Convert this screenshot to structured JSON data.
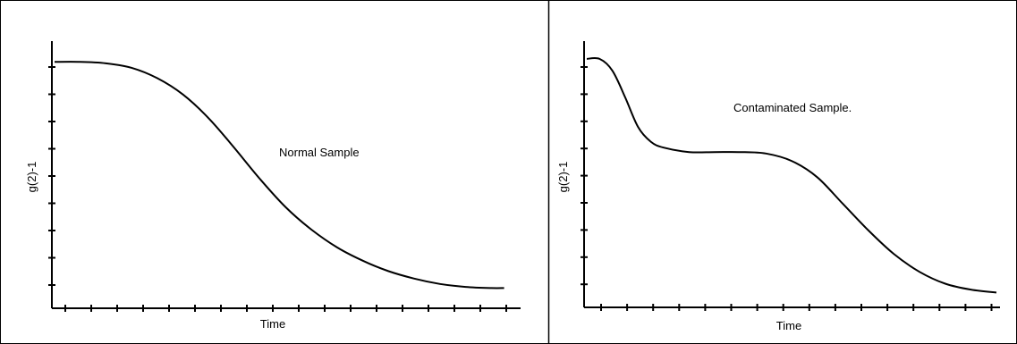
{
  "chart_data": [
    {
      "type": "line",
      "title": "",
      "annotation": "Normal Sample",
      "xlabel": "Time",
      "ylabel": "g(2)-1",
      "xlim": [
        0,
        18
      ],
      "ylim": [
        0,
        9
      ],
      "x_tick_count": 18,
      "y_tick_count": 9,
      "grid": false,
      "series": [
        {
          "x": [
            0,
            1,
            2,
            3,
            4,
            5,
            6,
            7,
            8,
            9,
            10,
            11,
            12,
            13,
            14,
            15,
            16,
            17,
            17.5
          ],
          "y": [
            8.3,
            8.3,
            8.25,
            8.1,
            7.75,
            7.2,
            6.4,
            5.4,
            4.35,
            3.4,
            2.65,
            2.05,
            1.6,
            1.25,
            1.0,
            0.82,
            0.72,
            0.68,
            0.68
          ]
        }
      ]
    },
    {
      "type": "line",
      "title": "",
      "annotation": "Contaminated Sample.",
      "xlabel": "Time",
      "ylabel": "g(2)-1",
      "xlim": [
        0,
        16
      ],
      "ylim": [
        0,
        9
      ],
      "x_tick_count": 16,
      "y_tick_count": 9,
      "grid": false,
      "series": [
        {
          "x": [
            0,
            0.5,
            1,
            1.5,
            2,
            2.5,
            3,
            4,
            5,
            6,
            7,
            8,
            9,
            10,
            11,
            12,
            13,
            14,
            15,
            16
          ],
          "y": [
            8.4,
            8.4,
            8.0,
            7.1,
            6.1,
            5.6,
            5.4,
            5.25,
            5.25,
            5.25,
            5.2,
            4.95,
            4.4,
            3.5,
            2.6,
            1.8,
            1.2,
            0.8,
            0.6,
            0.5
          ]
        }
      ]
    }
  ]
}
